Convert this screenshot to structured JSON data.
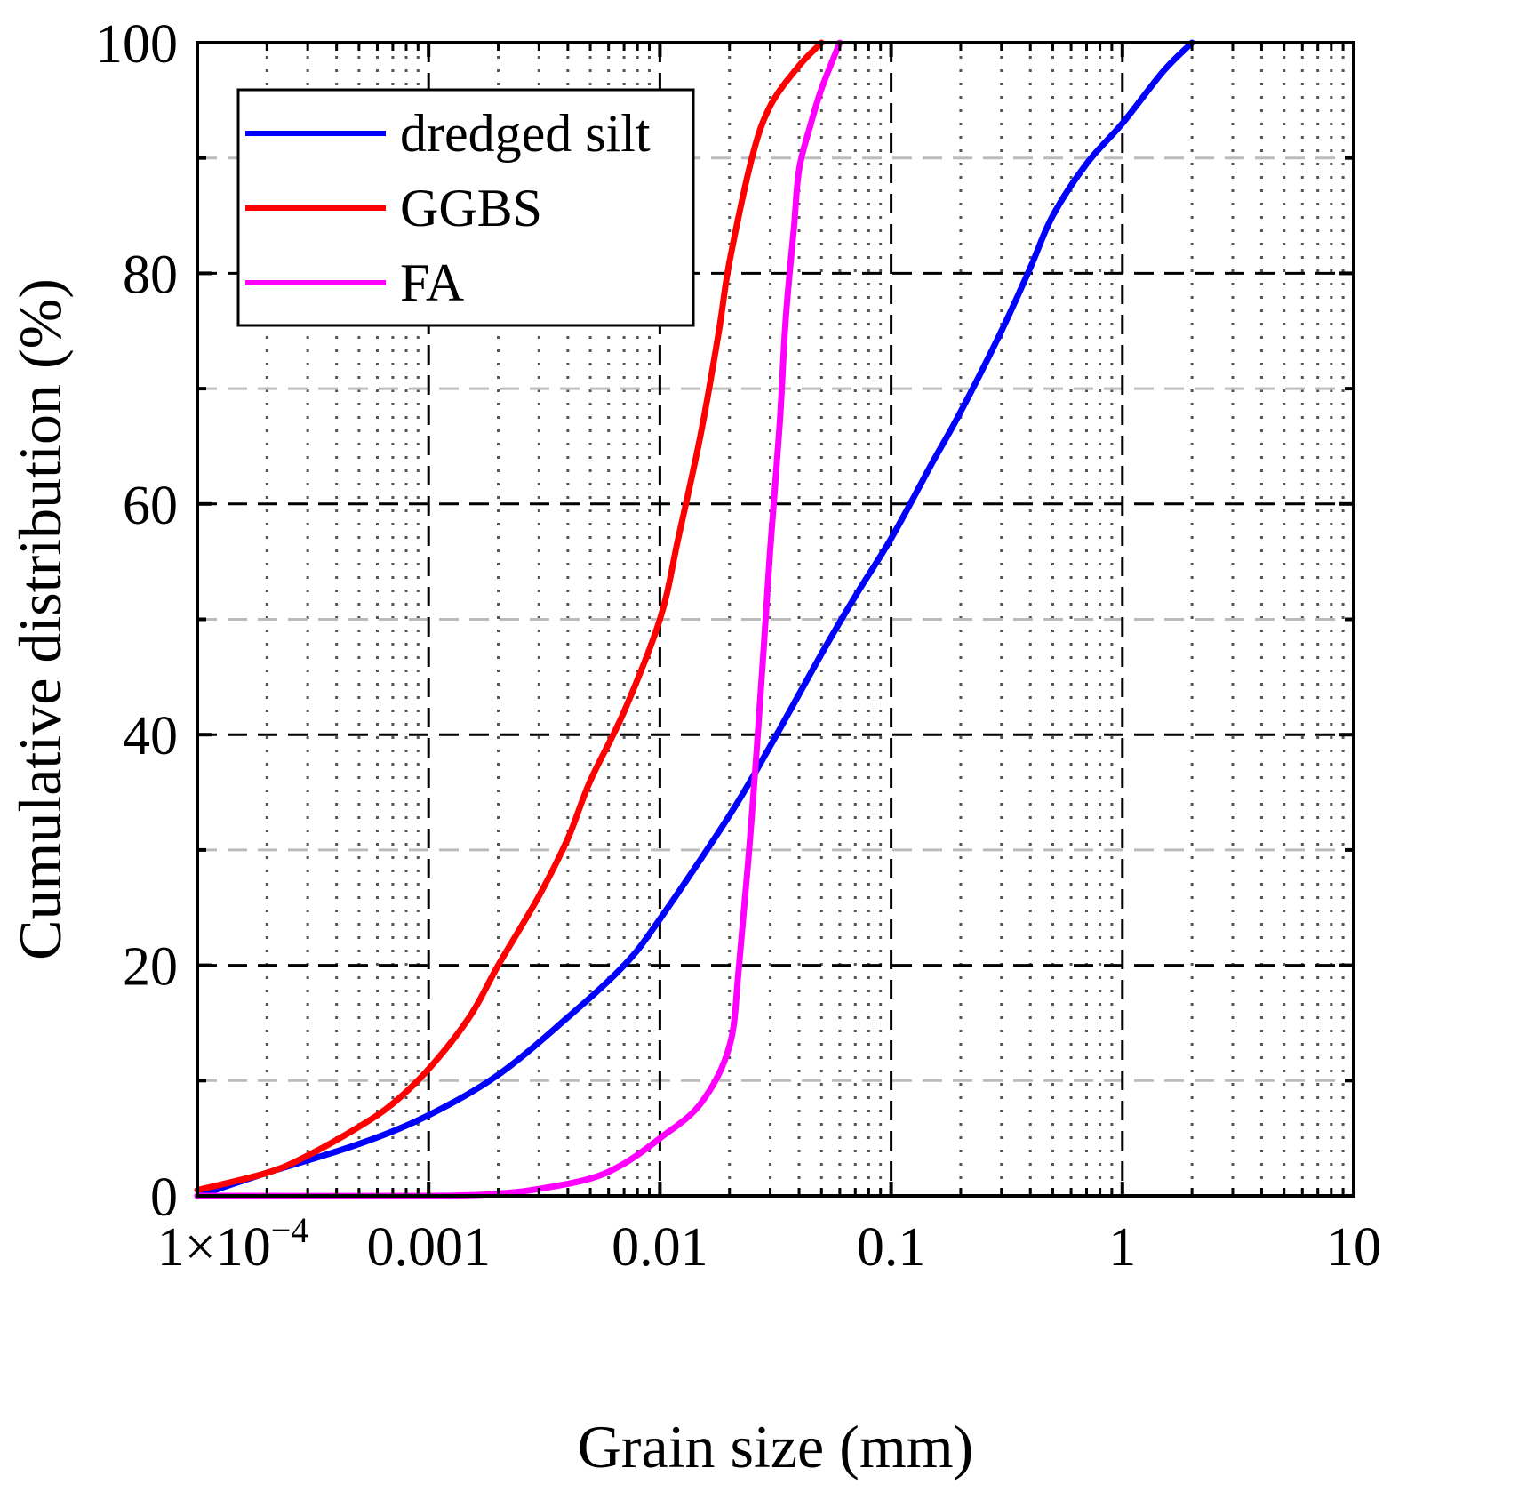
{
  "chart_data": {
    "type": "line",
    "title": "",
    "xlabel": "Grain size (mm)",
    "ylabel": "Cumulative distribution (%)",
    "xscale": "log",
    "xlim": [
      0.0001,
      10
    ],
    "ylim": [
      0,
      100
    ],
    "x_ticks": [
      0.0001,
      0.001,
      0.01,
      0.1,
      1,
      10
    ],
    "x_tick_labels": [
      "1×10",
      "0.001",
      "0.01",
      "0.1",
      "1",
      "10"
    ],
    "x_tick_label_first_exponent": "−4",
    "y_ticks": [
      0,
      20,
      40,
      60,
      80,
      100
    ],
    "y_tick_labels": [
      "0",
      "20",
      "40",
      "60",
      "80",
      "100"
    ],
    "grid": true,
    "legend_position": "top-left",
    "series": [
      {
        "name": "dredged silt",
        "color": "#0000ff",
        "x": [
          0.0001,
          0.0002,
          0.0005,
          0.001,
          0.002,
          0.004,
          0.007,
          0.01,
          0.02,
          0.03,
          0.05,
          0.07,
          0.1,
          0.15,
          0.2,
          0.3,
          0.4,
          0.5,
          0.7,
          1.0,
          1.5,
          2.0
        ],
        "y": [
          0,
          2,
          4.5,
          7,
          10.5,
          15.5,
          20,
          24,
          33,
          39,
          47,
          52,
          57,
          63.5,
          68,
          75,
          80.5,
          85,
          89.5,
          93,
          97.5,
          100
        ]
      },
      {
        "name": "GGBS",
        "color": "#ff0000",
        "x": [
          0.0001,
          0.0002,
          0.0003,
          0.0005,
          0.0007,
          0.001,
          0.0015,
          0.002,
          0.003,
          0.004,
          0.005,
          0.007,
          0.01,
          0.012,
          0.015,
          0.018,
          0.02,
          0.025,
          0.03,
          0.04,
          0.05
        ],
        "y": [
          0.5,
          2,
          3.5,
          6,
          8,
          11,
          15.5,
          20,
          26,
          31,
          36,
          42,
          50,
          57,
          66,
          75,
          81,
          90,
          94.5,
          98,
          100
        ]
      },
      {
        "name": "FA",
        "color": "#ff00ff",
        "x": [
          0.0001,
          0.001,
          0.002,
          0.003,
          0.005,
          0.007,
          0.01,
          0.015,
          0.02,
          0.022,
          0.025,
          0.028,
          0.03,
          0.033,
          0.035,
          0.038,
          0.04,
          0.045,
          0.05,
          0.06
        ],
        "y": [
          0,
          0,
          0.2,
          0.6,
          1.5,
          2.8,
          5,
          8,
          13,
          20,
          33,
          47,
          56,
          67,
          76,
          84,
          89,
          93,
          96,
          100
        ]
      }
    ]
  }
}
